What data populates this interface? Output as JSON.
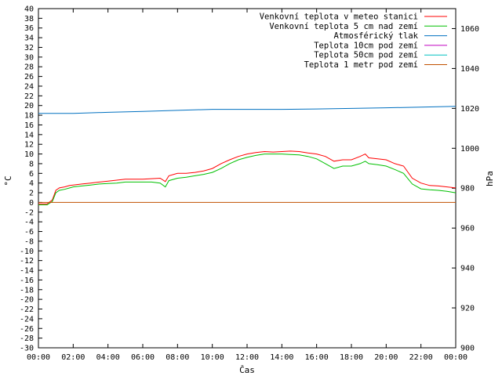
{
  "chart_data": {
    "type": "line",
    "xlabel": "Čas",
    "ylabel_left": "°C",
    "ylabel_right": "hPa",
    "xlim": [
      0,
      24
    ],
    "ylim_left": [
      -30,
      40
    ],
    "ylim_right": [
      900,
      1070
    ],
    "grid": false,
    "legend_position": "top-right",
    "x_tick_labels": [
      "00:00",
      "02:00",
      "04:00",
      "06:00",
      "08:00",
      "10:00",
      "12:00",
      "14:00",
      "16:00",
      "18:00",
      "20:00",
      "22:00",
      "00:00"
    ],
    "y_left_ticks": [
      -30,
      -28,
      -26,
      -24,
      -22,
      -20,
      -18,
      -16,
      -14,
      -12,
      -10,
      -8,
      -6,
      -4,
      -2,
      0,
      2,
      4,
      6,
      8,
      10,
      12,
      14,
      16,
      18,
      20,
      22,
      24,
      26,
      28,
      30,
      32,
      34,
      36,
      38,
      40
    ],
    "y_right_ticks": [
      900,
      920,
      940,
      960,
      980,
      1000,
      1020,
      1040,
      1060
    ],
    "series": [
      {
        "name": "Venkovní teplota v meteo stanici",
        "color": "#ff0000",
        "axis": "left",
        "x": [
          0,
          0.5,
          0.8,
          1.0,
          1.2,
          1.5,
          1.8,
          2.0,
          2.5,
          3.0,
          3.5,
          4.0,
          4.5,
          5.0,
          5.5,
          6.0,
          6.5,
          7.0,
          7.3,
          7.5,
          8.0,
          8.5,
          9.0,
          9.5,
          10.0,
          10.5,
          11.0,
          11.5,
          12.0,
          12.5,
          13.0,
          13.5,
          14.0,
          14.5,
          15.0,
          15.5,
          16.0,
          16.5,
          17.0,
          17.5,
          18.0,
          18.5,
          18.8,
          19.0,
          19.5,
          20.0,
          20.5,
          21.0,
          21.5,
          22.0,
          22.5,
          23.0,
          23.5,
          24.0
        ],
        "y": [
          -0.3,
          -0.3,
          0.5,
          2.5,
          3.0,
          3.2,
          3.5,
          3.6,
          3.8,
          4.0,
          4.2,
          4.4,
          4.6,
          4.8,
          4.8,
          4.8,
          4.9,
          5.0,
          4.3,
          5.5,
          6.0,
          6.0,
          6.2,
          6.5,
          7.0,
          8.0,
          8.8,
          9.5,
          10.0,
          10.3,
          10.5,
          10.4,
          10.5,
          10.6,
          10.5,
          10.2,
          10.0,
          9.5,
          8.5,
          8.8,
          8.8,
          9.5,
          10.0,
          9.2,
          9.0,
          8.8,
          8.0,
          7.5,
          5.0,
          4.0,
          3.5,
          3.4,
          3.2,
          3.0
        ]
      },
      {
        "name": "Venkovní teplota 5 cm nad zemí",
        "color": "#00c000",
        "axis": "left",
        "x": [
          0,
          0.5,
          0.8,
          1.0,
          1.2,
          1.5,
          1.8,
          2.0,
          2.5,
          3.0,
          3.5,
          4.0,
          4.5,
          5.0,
          5.5,
          6.0,
          6.5,
          7.0,
          7.3,
          7.5,
          8.0,
          8.5,
          9.0,
          9.5,
          10.0,
          10.5,
          11.0,
          11.5,
          12.0,
          12.5,
          13.0,
          13.5,
          14.0,
          14.5,
          15.0,
          15.5,
          16.0,
          16.5,
          17.0,
          17.5,
          18.0,
          18.5,
          18.8,
          19.0,
          19.5,
          20.0,
          20.5,
          21.0,
          21.5,
          22.0,
          22.5,
          23.0,
          23.5,
          24.0
        ],
        "y": [
          -0.5,
          -0.5,
          0.2,
          2.0,
          2.5,
          2.7,
          3.0,
          3.2,
          3.4,
          3.6,
          3.8,
          3.9,
          4.0,
          4.2,
          4.2,
          4.2,
          4.2,
          4.0,
          3.2,
          4.5,
          5.0,
          5.2,
          5.5,
          5.8,
          6.2,
          7.0,
          8.0,
          8.8,
          9.3,
          9.7,
          10.0,
          10.0,
          10.0,
          9.9,
          9.8,
          9.5,
          9.0,
          8.0,
          7.0,
          7.5,
          7.5,
          8.0,
          8.5,
          8.0,
          7.8,
          7.5,
          6.8,
          6.0,
          3.8,
          2.8,
          2.6,
          2.5,
          2.3,
          2.0
        ]
      },
      {
        "name": "Atmosférický tlak",
        "color": "#0070c0",
        "axis": "right",
        "x": [
          0,
          2,
          4,
          6,
          8,
          10,
          12,
          14,
          16,
          18,
          20,
          22,
          24
        ],
        "y": [
          1017.5,
          1017.5,
          1018.0,
          1018.5,
          1019.0,
          1019.5,
          1019.5,
          1019.5,
          1019.7,
          1020.0,
          1020.3,
          1020.6,
          1021.0
        ]
      },
      {
        "name": "Teplota 10cm pod zemí",
        "color": "#c000c0",
        "axis": "left",
        "x": [],
        "y": []
      },
      {
        "name": "Teplota 50cm pod zemí",
        "color": "#00c0c0",
        "axis": "left",
        "x": [],
        "y": []
      },
      {
        "name": "Teplota 1 metr pod zemí",
        "color": "#c05000",
        "axis": "left",
        "x": [
          0,
          24
        ],
        "y": [
          0,
          0
        ]
      }
    ]
  }
}
